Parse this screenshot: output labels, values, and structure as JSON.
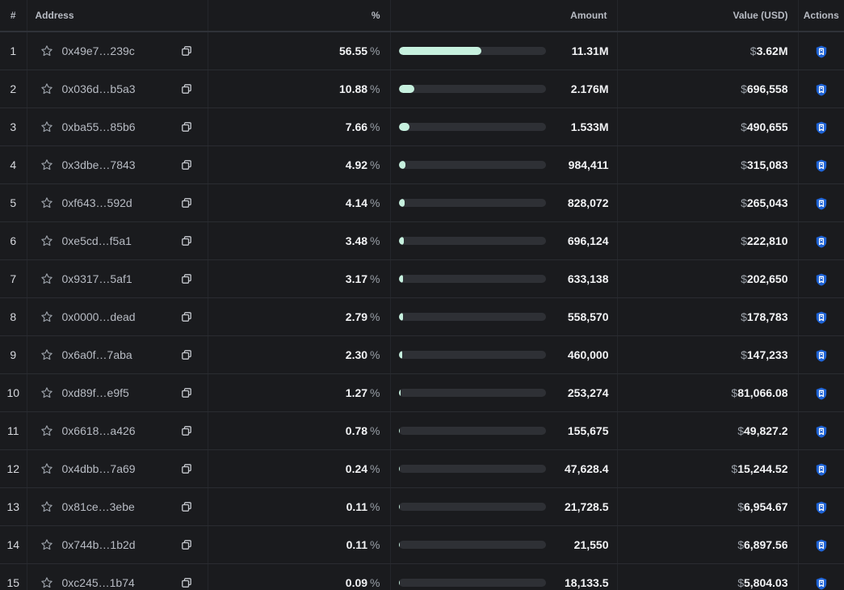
{
  "headers": {
    "rank": "#",
    "address": "Address",
    "percent": "%",
    "amount": "Amount",
    "value": "Value (USD)",
    "actions": "Actions"
  },
  "colors": {
    "bar_fill": "#c6f0de",
    "bar_track": "#2e3035",
    "action_icon": "#1e63d6"
  },
  "percent_sign": "%",
  "currency_sign": "$",
  "rows": [
    {
      "rank": "1",
      "address": "0x49e7…239c",
      "percent": "56.55",
      "fraction": 0.5655,
      "amount": "11.31M",
      "value": "3.62M"
    },
    {
      "rank": "2",
      "address": "0x036d…b5a3",
      "percent": "10.88",
      "fraction": 0.1088,
      "amount": "2.176M",
      "value": "696,558"
    },
    {
      "rank": "3",
      "address": "0xba55…85b6",
      "percent": "7.66",
      "fraction": 0.0766,
      "amount": "1.533M",
      "value": "490,655"
    },
    {
      "rank": "4",
      "address": "0x3dbe…7843",
      "percent": "4.92",
      "fraction": 0.0492,
      "amount": "984,411",
      "value": "315,083"
    },
    {
      "rank": "5",
      "address": "0xf643…592d",
      "percent": "4.14",
      "fraction": 0.0414,
      "amount": "828,072",
      "value": "265,043"
    },
    {
      "rank": "6",
      "address": "0xe5cd…f5a1",
      "percent": "3.48",
      "fraction": 0.0348,
      "amount": "696,124",
      "value": "222,810"
    },
    {
      "rank": "7",
      "address": "0x9317…5af1",
      "percent": "3.17",
      "fraction": 0.0317,
      "amount": "633,138",
      "value": "202,650"
    },
    {
      "rank": "8",
      "address": "0x0000…dead",
      "percent": "2.79",
      "fraction": 0.0279,
      "amount": "558,570",
      "value": "178,783"
    },
    {
      "rank": "9",
      "address": "0x6a0f…7aba",
      "percent": "2.30",
      "fraction": 0.023,
      "amount": "460,000",
      "value": "147,233"
    },
    {
      "rank": "10",
      "address": "0xd89f…e9f5",
      "percent": "1.27",
      "fraction": 0.0127,
      "amount": "253,274",
      "value": "81,066.08"
    },
    {
      "rank": "11",
      "address": "0x6618…a426",
      "percent": "0.78",
      "fraction": 0.0078,
      "amount": "155,675",
      "value": "49,827.2"
    },
    {
      "rank": "12",
      "address": "0x4dbb…7a69",
      "percent": "0.24",
      "fraction": 0.0024,
      "amount": "47,628.4",
      "value": "15,244.52"
    },
    {
      "rank": "13",
      "address": "0x81ce…3ebe",
      "percent": "0.11",
      "fraction": 0.0011,
      "amount": "21,728.5",
      "value": "6,954.67"
    },
    {
      "rank": "14",
      "address": "0x744b…1b2d",
      "percent": "0.11",
      "fraction": 0.0011,
      "amount": "21,550",
      "value": "6,897.56"
    },
    {
      "rank": "15",
      "address": "0xc245…1b74",
      "percent": "0.09",
      "fraction": 0.0009,
      "amount": "18,133.5",
      "value": "5,804.03"
    }
  ],
  "icons": {
    "favorite": "star-icon",
    "copy": "copy-icon",
    "action": "shield-icon"
  }
}
